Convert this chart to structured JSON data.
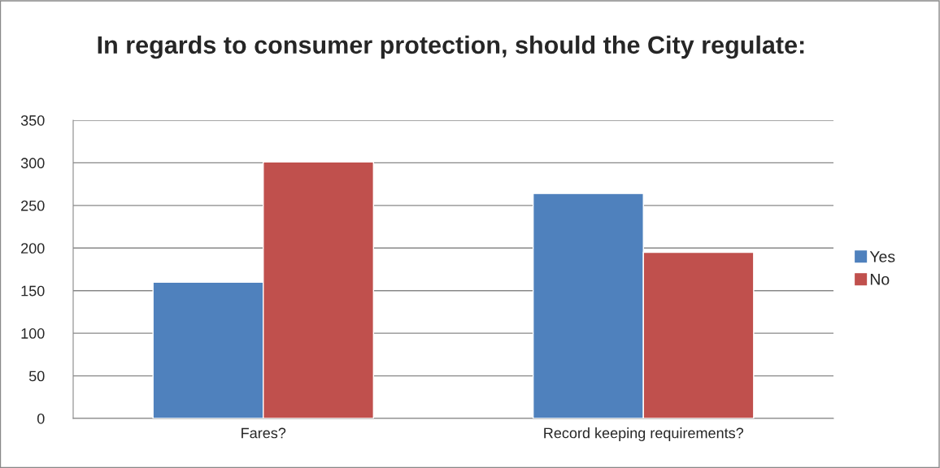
{
  "chart_data": {
    "type": "bar",
    "title": "In regards to consumer protection, should the City regulate:",
    "categories": [
      "Fares?",
      "Record keeping requirements?"
    ],
    "series": [
      {
        "name": "Yes",
        "color": "#4f81bd",
        "values": [
          160,
          264
        ]
      },
      {
        "name": "No",
        "color": "#c0504d",
        "values": [
          301,
          195
        ]
      }
    ],
    "ylim": [
      0,
      350
    ],
    "yticks": [
      0,
      50,
      100,
      150,
      200,
      250,
      300,
      350
    ],
    "grid": "y",
    "legend": "right"
  }
}
